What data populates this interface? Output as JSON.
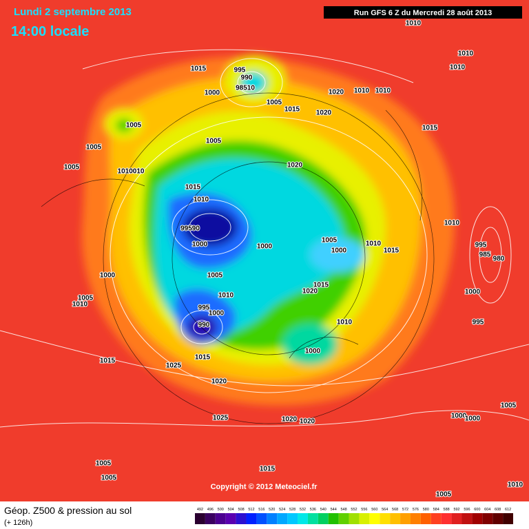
{
  "header": {
    "date": "Lundi 2 septembre 2013",
    "time": "14:00 locale",
    "run": "Run GFS 6 Z du Mercredi 28 août 2013"
  },
  "isobar_labels": [
    "1010",
    "1010",
    "1010",
    "1015",
    "995",
    "990",
    "98510",
    "1000",
    "1020",
    "1010",
    "1010",
    "1005",
    "1015",
    "1020",
    "1005",
    "1015",
    "1005",
    "1005",
    "1020",
    "1005",
    "1010010",
    "1015",
    "1010",
    "99590",
    "1000",
    "1000",
    "1005",
    "1010",
    "1015",
    "1000",
    "1010",
    "995",
    "985",
    "980",
    "1000",
    "1005",
    "1015",
    "1020",
    "1010",
    "1000",
    "1005",
    "1010",
    "995",
    "1000",
    "990",
    "1010",
    "995",
    "1000",
    "1015",
    "1015",
    "1025",
    "1020",
    "1025",
    "1020",
    "1020",
    "1000",
    "1000",
    "1005",
    "1005",
    "1005",
    "1015",
    "1005",
    "1010"
  ],
  "copyright": "Copyright © 2012 Meteociel.fr",
  "footer": {
    "title": "Géop. Z500 & pression au sol",
    "lead": "(+ 126h)"
  },
  "legend": {
    "labels": [
      "492",
      "496",
      "500",
      "504",
      "508",
      "512",
      "516",
      "520",
      "524",
      "528",
      "532",
      "536",
      "540",
      "544",
      "548",
      "552",
      "556",
      "560",
      "564",
      "568",
      "572",
      "576",
      "580",
      "584",
      "588",
      "592",
      "596",
      "600",
      "604",
      "608",
      "612"
    ]
  }
}
